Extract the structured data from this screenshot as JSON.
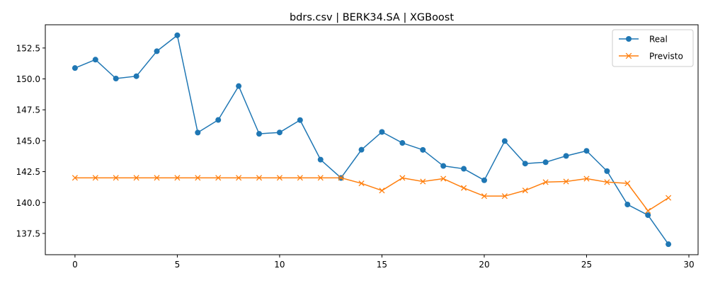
{
  "chart_data": {
    "type": "line",
    "title": "bdrs.csv | BERK34.SA | XGBoost",
    "xlabel": "",
    "ylabel": "",
    "xlim": [
      -1.45,
      30.45
    ],
    "ylim": [
      135.78,
      154.38
    ],
    "xticks": [
      0,
      5,
      10,
      15,
      20,
      25,
      30
    ],
    "yticks": [
      137.5,
      140.0,
      142.5,
      145.0,
      147.5,
      150.0,
      152.5
    ],
    "ytick_labels": [
      "137.5",
      "140.0",
      "142.5",
      "145.0",
      "147.5",
      "150.0",
      "152.5"
    ],
    "grid": false,
    "legend_position": "top-right",
    "x": [
      0,
      1,
      2,
      3,
      4,
      5,
      6,
      7,
      8,
      9,
      10,
      11,
      12,
      13,
      14,
      15,
      16,
      17,
      18,
      19,
      20,
      21,
      22,
      23,
      24,
      25,
      26,
      27,
      28,
      29
    ],
    "series": [
      {
        "name": "Real",
        "color": "#1f77b4",
        "marker": "circle",
        "values": [
          150.88,
          151.56,
          150.03,
          150.22,
          152.24,
          153.53,
          145.66,
          146.68,
          149.42,
          145.56,
          145.67,
          146.67,
          143.47,
          141.99,
          144.27,
          145.71,
          144.82,
          144.26,
          142.96,
          142.73,
          141.8,
          144.97,
          143.15,
          143.26,
          143.77,
          144.18,
          142.54,
          139.84,
          138.98,
          136.63
        ]
      },
      {
        "name": "Previsto",
        "color": "#ff7f0e",
        "marker": "x",
        "values": [
          142.0,
          142.0,
          142.0,
          142.0,
          142.0,
          142.0,
          142.0,
          142.0,
          142.0,
          142.0,
          142.0,
          142.0,
          142.0,
          142.0,
          141.55,
          140.97,
          141.99,
          141.7,
          141.93,
          141.18,
          140.52,
          140.52,
          140.98,
          141.65,
          141.7,
          141.93,
          141.65,
          141.55,
          139.33,
          140.38
        ]
      }
    ]
  }
}
